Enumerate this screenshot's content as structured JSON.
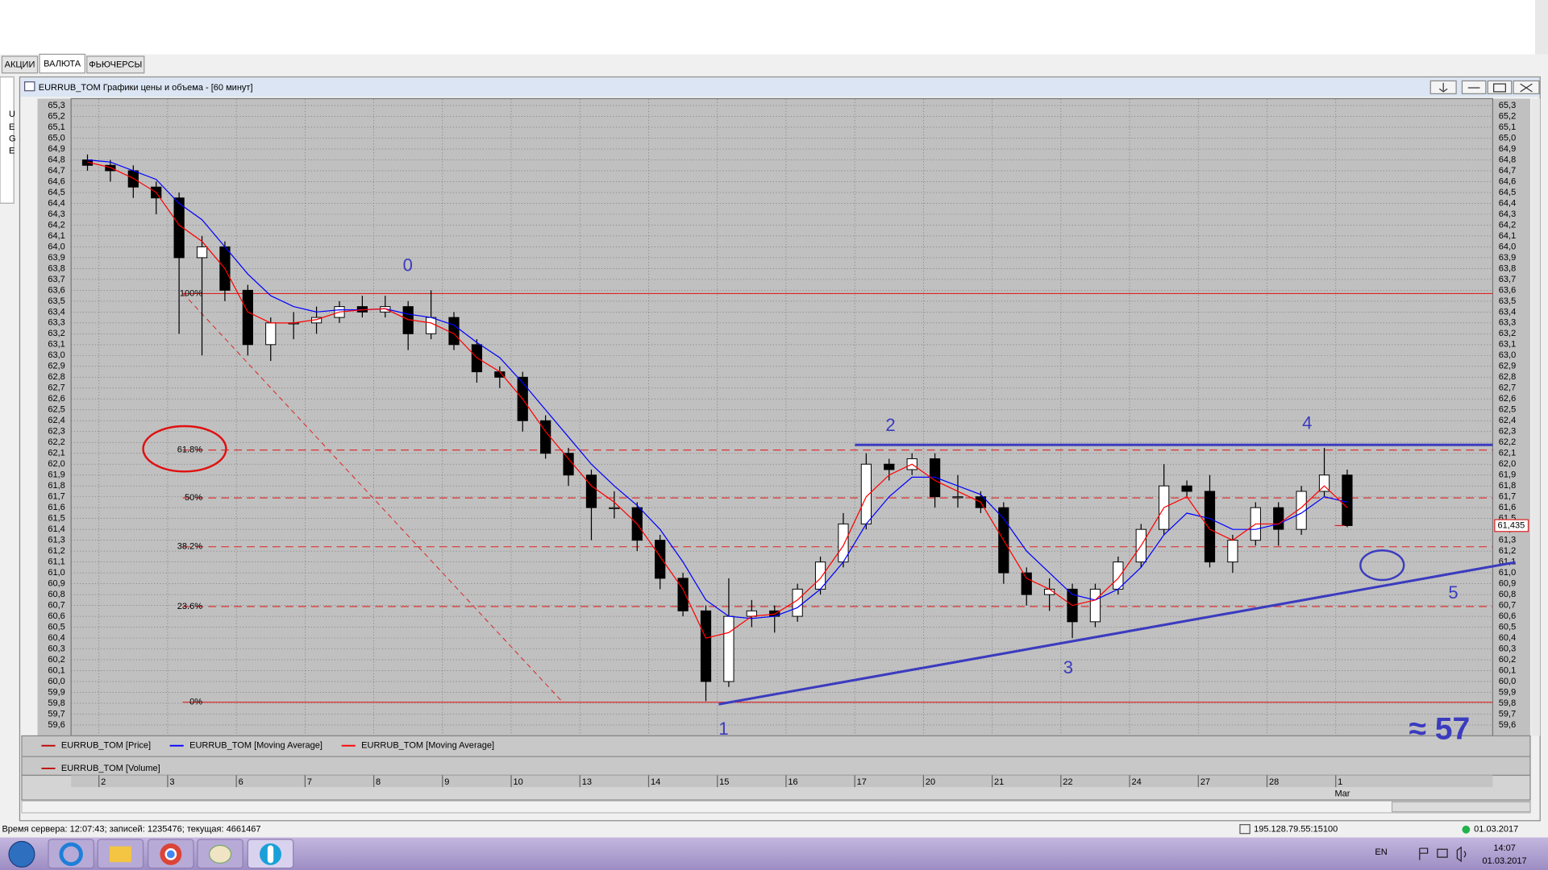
{
  "tabs": [
    "АКЦИИ",
    "ВАЛЮТА",
    "ФЬЮЧЕРСЫ"
  ],
  "side_panel": [
    "U",
    "E",
    "G",
    "E"
  ],
  "window": {
    "title": "EURRUB_TOM Графики цены и объема - [60 минут]"
  },
  "chart_data": {
    "type": "candlestick",
    "categories": [
      null,
      "2",
      null,
      null,
      "3",
      null,
      null,
      "6",
      null,
      null,
      "7",
      null,
      null,
      "8",
      null,
      null,
      "9",
      null,
      null,
      "10",
      null,
      null,
      "13",
      null,
      null,
      "14",
      null,
      null,
      "15",
      null,
      null,
      "16",
      null,
      null,
      "17",
      null,
      null,
      "20",
      null,
      null,
      "21",
      null,
      null,
      "22",
      null,
      null,
      "24",
      null,
      null,
      "27",
      null,
      null,
      "28",
      null,
      null,
      "1"
    ],
    "month_label": "Mar",
    "open": [
      64.8,
      64.75,
      64.7,
      64.55,
      64.45,
      63.9,
      64.0,
      63.6,
      63.1,
      63.3,
      63.3,
      63.35,
      63.45,
      63.4,
      63.45,
      63.2,
      63.35,
      63.1,
      62.85,
      62.8,
      62.4,
      62.1,
      61.9,
      61.6,
      61.6,
      61.3,
      60.95,
      60.65,
      60.0,
      60.6,
      60.65,
      60.6,
      60.85,
      61.1,
      61.45,
      62.0,
      61.95,
      62.05,
      61.7,
      61.7,
      61.6,
      61.0,
      60.8,
      60.85,
      60.55,
      60.85,
      61.1,
      61.4,
      61.8,
      61.75,
      61.1,
      61.3,
      61.6,
      61.4,
      61.75,
      61.9
    ],
    "high": [
      64.85,
      64.8,
      64.75,
      64.6,
      64.5,
      64.1,
      64.05,
      63.65,
      63.35,
      63.4,
      63.45,
      63.5,
      63.55,
      63.55,
      63.5,
      63.6,
      63.4,
      63.15,
      62.9,
      62.85,
      62.45,
      62.15,
      61.95,
      61.75,
      61.65,
      61.35,
      61.0,
      60.7,
      60.95,
      60.75,
      60.7,
      60.9,
      61.15,
      61.55,
      62.1,
      62.05,
      62.1,
      62.1,
      61.9,
      61.75,
      61.65,
      61.05,
      60.95,
      60.9,
      60.9,
      61.15,
      61.45,
      62.0,
      61.85,
      61.9,
      61.35,
      61.65,
      61.65,
      61.8,
      62.15,
      61.95
    ],
    "low": [
      64.7,
      64.6,
      64.45,
      64.3,
      63.2,
      63.0,
      63.5,
      63.0,
      62.95,
      63.15,
      63.2,
      63.3,
      63.35,
      63.35,
      63.05,
      63.15,
      63.05,
      62.75,
      62.7,
      62.3,
      62.05,
      61.8,
      61.3,
      61.5,
      61.2,
      60.85,
      60.6,
      59.82,
      59.95,
      60.5,
      60.45,
      60.55,
      60.8,
      61.05,
      61.4,
      61.85,
      61.9,
      61.6,
      61.6,
      61.55,
      60.9,
      60.7,
      60.65,
      60.4,
      60.5,
      60.8,
      61.05,
      61.35,
      61.7,
      61.05,
      61.0,
      61.25,
      61.25,
      61.35,
      61.7,
      61.42
    ],
    "close": [
      64.75,
      64.7,
      64.55,
      64.45,
      63.9,
      64.0,
      63.6,
      63.1,
      63.3,
      63.3,
      63.35,
      63.45,
      63.4,
      63.45,
      63.2,
      63.35,
      63.1,
      62.85,
      62.8,
      62.4,
      62.1,
      61.9,
      61.6,
      61.6,
      61.3,
      60.95,
      60.65,
      60.0,
      60.6,
      60.65,
      60.6,
      60.85,
      61.1,
      61.45,
      62.0,
      61.95,
      62.05,
      61.7,
      61.7,
      61.6,
      61.0,
      60.8,
      60.85,
      60.55,
      60.85,
      61.1,
      61.4,
      61.8,
      61.75,
      61.1,
      61.3,
      61.6,
      61.4,
      61.75,
      61.9,
      61.435
    ],
    "price_legend": {
      "name": "EURRUB_TOM [Price]",
      "color": "#c00000"
    },
    "series": [
      {
        "name": "EURRUB_TOM [Moving Average]",
        "color": "#0000ff",
        "values": [
          64.8,
          64.78,
          64.7,
          64.62,
          64.4,
          64.25,
          64.0,
          63.75,
          63.55,
          63.45,
          63.4,
          63.42,
          63.42,
          63.43,
          63.38,
          63.35,
          63.28,
          63.12,
          62.98,
          62.75,
          62.5,
          62.25,
          62.0,
          61.8,
          61.62,
          61.4,
          61.1,
          60.75,
          60.6,
          60.58,
          60.6,
          60.68,
          60.85,
          61.1,
          61.45,
          61.7,
          61.88,
          61.88,
          61.8,
          61.72,
          61.5,
          61.2,
          61.0,
          60.8,
          60.75,
          60.85,
          61.05,
          61.35,
          61.55,
          61.5,
          61.4,
          61.4,
          61.45,
          61.55,
          61.7,
          61.65
        ]
      },
      {
        "name": "EURRUB_TOM [Moving Average]",
        "color": "#ff0000",
        "values": [
          64.78,
          64.73,
          64.63,
          64.5,
          64.2,
          64.05,
          63.8,
          63.4,
          63.3,
          63.3,
          63.33,
          63.4,
          63.42,
          63.43,
          63.33,
          63.3,
          63.2,
          62.98,
          62.85,
          62.6,
          62.3,
          62.05,
          61.8,
          61.65,
          61.45,
          61.15,
          60.85,
          60.4,
          60.45,
          60.6,
          60.62,
          60.75,
          60.95,
          61.25,
          61.7,
          61.9,
          62.0,
          61.85,
          61.75,
          61.65,
          61.3,
          60.95,
          60.85,
          60.7,
          60.75,
          60.95,
          61.25,
          61.6,
          61.7,
          61.4,
          61.3,
          61.45,
          61.45,
          61.6,
          61.8,
          61.6
        ]
      }
    ],
    "volume_legend": {
      "name": "EURRUB_TOM [Volume]",
      "color": "#c00000"
    },
    "ylim": [
      59.55,
      65.35
    ],
    "yticks": [
      {
        "value": 59.6,
        "label": "59,6"
      },
      {
        "value": 59.7,
        "label": "59,7"
      },
      {
        "value": 59.8,
        "label": "59,8"
      },
      {
        "value": 59.9,
        "label": "59,9"
      },
      {
        "value": 60.0,
        "label": "60,0"
      },
      {
        "value": 60.1,
        "label": "60,1"
      },
      {
        "value": 60.2,
        "label": "60,2"
      },
      {
        "value": 60.3,
        "label": "60,3"
      },
      {
        "value": 60.4,
        "label": "60,4"
      },
      {
        "value": 60.5,
        "label": "60,5"
      },
      {
        "value": 60.6,
        "label": "60,6"
      },
      {
        "value": 60.7,
        "label": "60,7"
      },
      {
        "value": 60.8,
        "label": "60,8"
      },
      {
        "value": 60.9,
        "label": "60,9"
      },
      {
        "value": 61.0,
        "label": "61,0"
      },
      {
        "value": 61.1,
        "label": "61,1"
      },
      {
        "value": 61.2,
        "label": "61,2"
      },
      {
        "value": 61.3,
        "label": "61,3"
      },
      {
        "value": 61.4,
        "label": "61,4"
      },
      {
        "value": 61.5,
        "label": "61,5"
      },
      {
        "value": 61.6,
        "label": "61,6"
      },
      {
        "value": 61.7,
        "label": "61,7"
      },
      {
        "value": 61.8,
        "label": "61,8"
      },
      {
        "value": 61.9,
        "label": "61,9"
      },
      {
        "value": 62.0,
        "label": "62,0"
      },
      {
        "value": 62.1,
        "label": "62,1"
      },
      {
        "value": 62.2,
        "label": "62,2"
      },
      {
        "value": 62.3,
        "label": "62,3"
      },
      {
        "value": 62.4,
        "label": "62,4"
      },
      {
        "value": 62.5,
        "label": "62,5"
      },
      {
        "value": 62.6,
        "label": "62,6"
      },
      {
        "value": 62.7,
        "label": "62,7"
      },
      {
        "value": 62.8,
        "label": "62,8"
      },
      {
        "value": 62.9,
        "label": "62,9"
      },
      {
        "value": 63.0,
        "label": "63,0"
      },
      {
        "value": 63.1,
        "label": "63,1"
      },
      {
        "value": 63.2,
        "label": "63,2"
      },
      {
        "value": 63.3,
        "label": "63,3"
      },
      {
        "value": 63.4,
        "label": "63,4"
      },
      {
        "value": 63.5,
        "label": "63,5"
      },
      {
        "value": 63.6,
        "label": "63,6"
      },
      {
        "value": 63.7,
        "label": "63,7"
      },
      {
        "value": 63.8,
        "label": "63,8"
      },
      {
        "value": 63.9,
        "label": "63,9"
      },
      {
        "value": 64.0,
        "label": "64,0"
      },
      {
        "value": 64.1,
        "label": "64,1"
      },
      {
        "value": 64.2,
        "label": "64,2"
      },
      {
        "value": 64.3,
        "label": "64,3"
      },
      {
        "value": 64.4,
        "label": "64,4"
      },
      {
        "value": 64.5,
        "label": "64,5"
      },
      {
        "value": 64.6,
        "label": "64,6"
      },
      {
        "value": 64.7,
        "label": "64,7"
      },
      {
        "value": 64.8,
        "label": "64,8"
      },
      {
        "value": 64.9,
        "label": "64,9"
      },
      {
        "value": 65.0,
        "label": "65,0"
      },
      {
        "value": 65.1,
        "label": "65,1"
      },
      {
        "value": 65.2,
        "label": "65,2"
      },
      {
        "value": 65.3,
        "label": "65,3"
      }
    ],
    "grid": true,
    "levels": [
      {
        "name": "100%",
        "value": 63.57
      },
      {
        "name": "61.8%",
        "value": 62.13
      },
      {
        "name": "50%",
        "value": 61.69
      },
      {
        "name": "38.2%",
        "value": 61.24
      },
      {
        "name": "23.6%",
        "value": 60.69
      },
      {
        "name": "0%",
        "value": 59.81
      }
    ],
    "last_price": {
      "value": 61.435,
      "label": "61,435"
    },
    "annotations": [
      "0",
      "1",
      "2",
      "3",
      "4",
      "5",
      "≈ 57"
    ]
  },
  "status_bar": {
    "server": "Время сервера: 12:07:43; записей: 1235476; текущая: 4661467",
    "connection": "195.128.79.55:15100",
    "date": "01.03.2017"
  },
  "taskbar": {
    "language": "EN",
    "time": "14:07",
    "date": "01.03.2017"
  }
}
